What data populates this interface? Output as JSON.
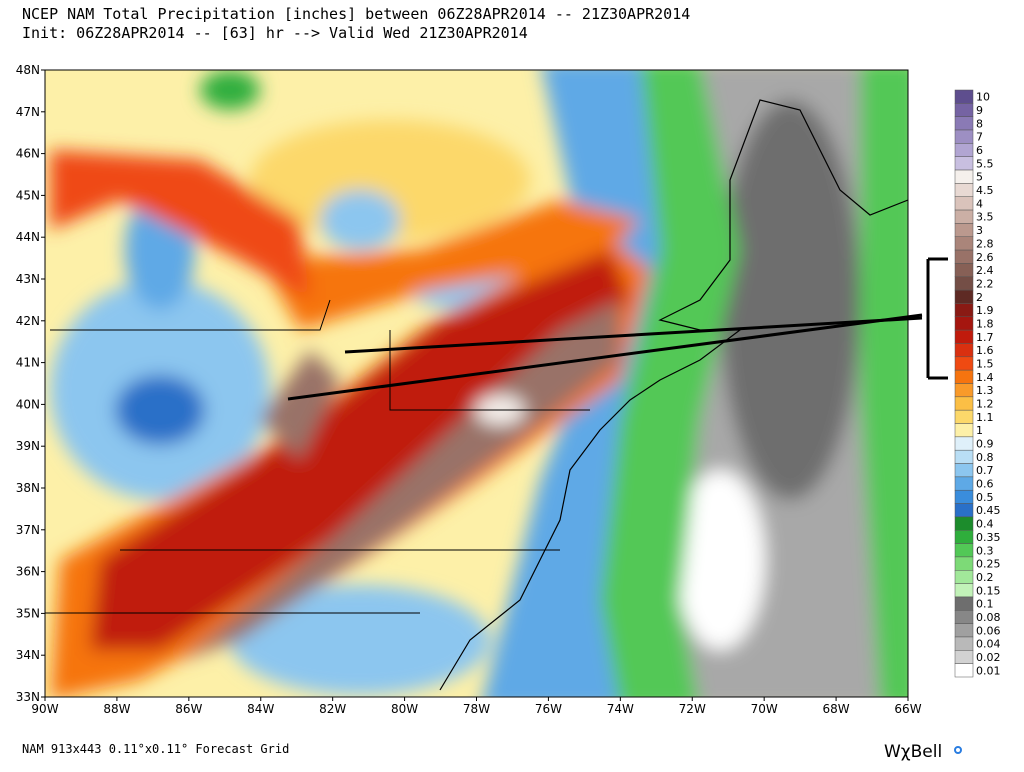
{
  "header": {
    "title": "NCEP NAM Total Precipitation [inches] between 06Z28APR2014 -- 21Z30APR2014",
    "subtitle": "Init: 06Z28APR2014 -- [63] hr --> Valid Wed 21Z30APR2014"
  },
  "map": {
    "lat_labels": [
      "48N",
      "47N",
      "46N",
      "45N",
      "44N",
      "43N",
      "42N",
      "41N",
      "40N",
      "39N",
      "38N",
      "37N",
      "36N",
      "35N",
      "34N",
      "33N"
    ],
    "lon_labels": [
      "90W",
      "88W",
      "86W",
      "84W",
      "82W",
      "80W",
      "78W",
      "76W",
      "74W",
      "72W",
      "70W",
      "68W",
      "66W"
    ]
  },
  "legend": [
    {
      "label": "10",
      "color": "#5e4e8e"
    },
    {
      "label": "9",
      "color": "#7563a3"
    },
    {
      "label": "8",
      "color": "#8a7ab5"
    },
    {
      "label": "7",
      "color": "#9d8fc3"
    },
    {
      "label": "6",
      "color": "#b1a5d2"
    },
    {
      "label": "5.5",
      "color": "#c8bfe0"
    },
    {
      "label": "5",
      "color": "#f5f0ec"
    },
    {
      "label": "4.5",
      "color": "#e8d9d3"
    },
    {
      "label": "4",
      "color": "#dac3bb"
    },
    {
      "label": "3.5",
      "color": "#cbafa5"
    },
    {
      "label": "3",
      "color": "#bb998e"
    },
    {
      "label": "2.8",
      "color": "#aa857a"
    },
    {
      "label": "2.6",
      "color": "#997268"
    },
    {
      "label": "2.4",
      "color": "#876056"
    },
    {
      "label": "2.2",
      "color": "#744e46"
    },
    {
      "label": "2",
      "color": "#5e2a24"
    },
    {
      "label": "1.9",
      "color": "#8a1a14"
    },
    {
      "label": "1.8",
      "color": "#a5160f"
    },
    {
      "label": "1.7",
      "color": "#c01b0c"
    },
    {
      "label": "1.6",
      "color": "#d93010"
    },
    {
      "label": "1.5",
      "color": "#ef4a12"
    },
    {
      "label": "1.4",
      "color": "#f6740f"
    },
    {
      "label": "1.3",
      "color": "#f99a2a"
    },
    {
      "label": "1.2",
      "color": "#fbbf45"
    },
    {
      "label": "1.1",
      "color": "#fcd86a"
    },
    {
      "label": "1",
      "color": "#fdf0a8"
    },
    {
      "label": "0.9",
      "color": "#dff0fa"
    },
    {
      "label": "0.8",
      "color": "#b9def5"
    },
    {
      "label": "0.7",
      "color": "#8cc6ef"
    },
    {
      "label": "0.6",
      "color": "#5ea9e6"
    },
    {
      "label": "0.5",
      "color": "#3a8ddc"
    },
    {
      "label": "0.45",
      "color": "#2a70c8"
    },
    {
      "label": "0.4",
      "color": "#1c8c2c"
    },
    {
      "label": "0.35",
      "color": "#2fae3c"
    },
    {
      "label": "0.3",
      "color": "#52c856"
    },
    {
      "label": "0.25",
      "color": "#7dda77"
    },
    {
      "label": "0.2",
      "color": "#a2e89a"
    },
    {
      "label": "0.15",
      "color": "#c2f2b8"
    },
    {
      "label": "0.1",
      "color": "#6e6e6e"
    },
    {
      "label": "0.08",
      "color": "#878787"
    },
    {
      "label": "0.06",
      "color": "#a0a0a0"
    },
    {
      "label": "0.04",
      "color": "#b9b9b9"
    },
    {
      "label": "0.02",
      "color": "#d2d2d2"
    },
    {
      "label": "0.01",
      "color": "#ffffff"
    }
  ],
  "footer": {
    "grid": "NAM 913x443 0.11°x0.11° Forecast Grid",
    "brand": "WχBell"
  }
}
